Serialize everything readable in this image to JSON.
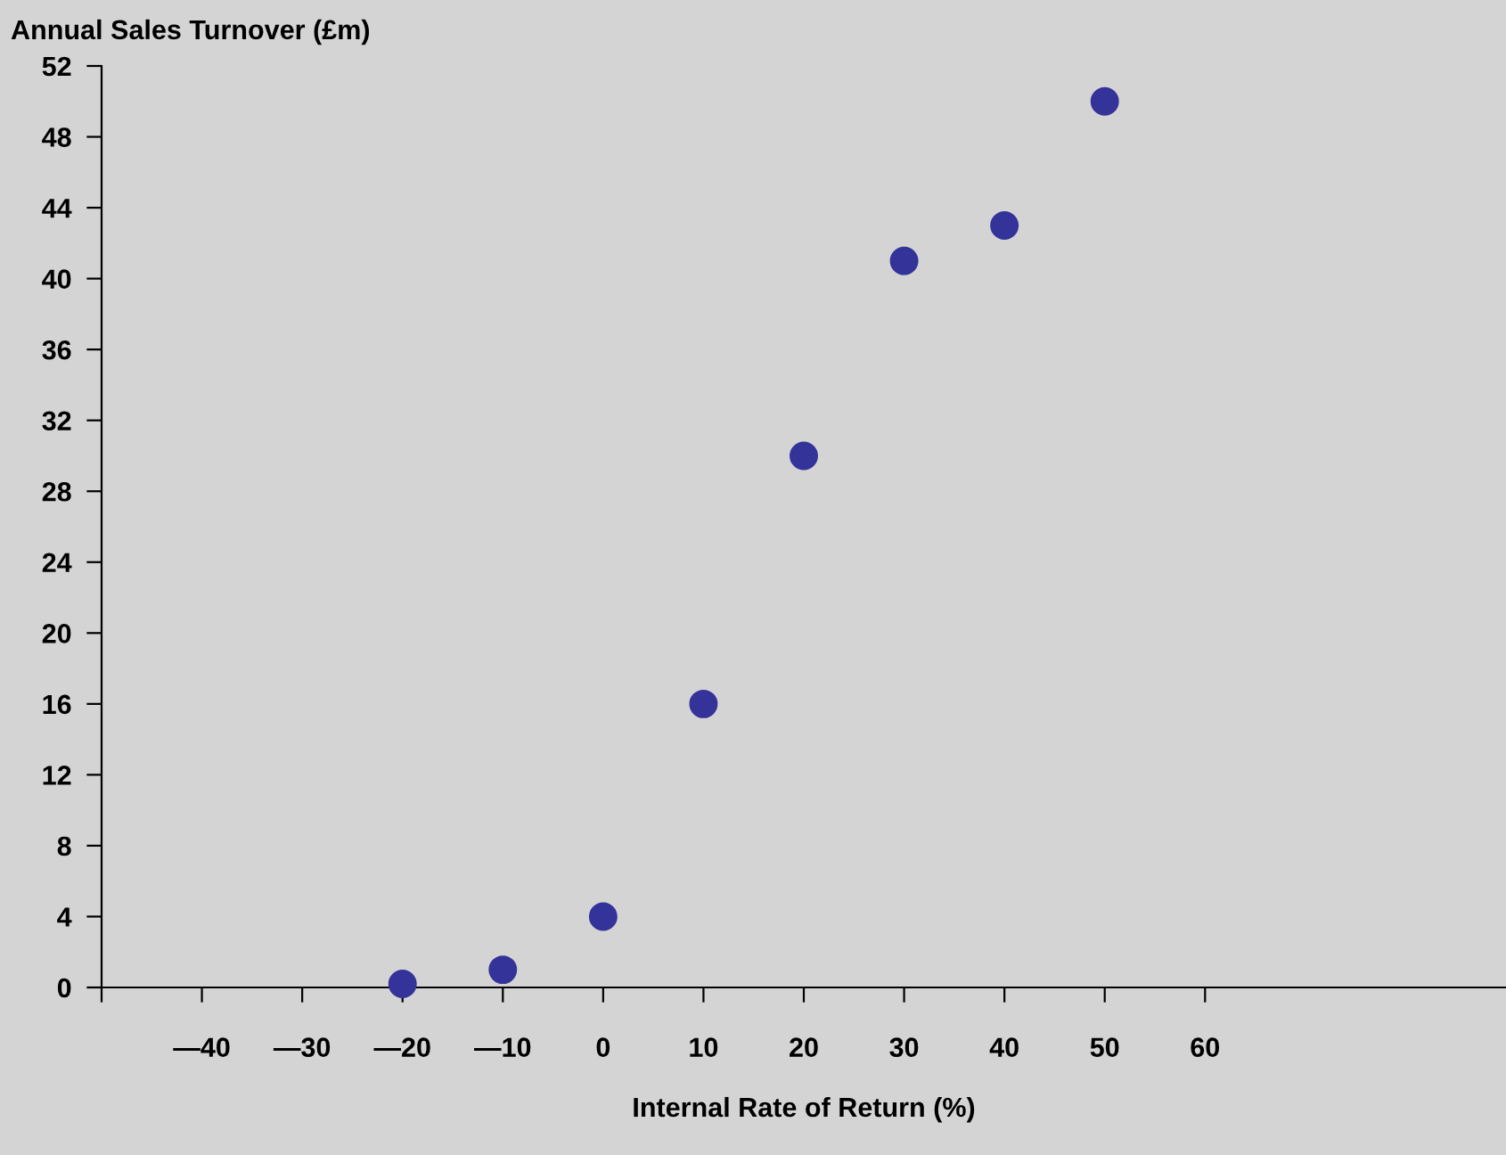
{
  "chart_data": {
    "type": "scatter",
    "xlabel": "Internal Rate of Return (%)",
    "ylabel": "Annual Sales Turnover (£m)",
    "x": [
      -20,
      -10,
      0,
      10,
      20,
      30,
      40,
      50
    ],
    "series": [
      {
        "color": "#333399",
        "values": [
          0.2,
          1,
          4,
          16,
          30,
          41,
          43,
          50
        ]
      }
    ],
    "marker": "circle",
    "xlim": [
      -50,
      90
    ],
    "ylim": [
      0,
      52
    ],
    "xticks": [
      {
        "value": -50,
        "label": null
      },
      {
        "value": -40,
        "label": "—40"
      },
      {
        "value": -30,
        "label": "—30"
      },
      {
        "value": -20,
        "label": "—20"
      },
      {
        "value": -10,
        "label": "—10"
      },
      0,
      10,
      20,
      30,
      40,
      50,
      60
    ],
    "yticks": [
      0,
      4,
      8,
      12,
      16,
      20,
      24,
      28,
      32,
      36,
      40,
      44,
      48,
      52
    ],
    "grid": false,
    "legend": false
  }
}
